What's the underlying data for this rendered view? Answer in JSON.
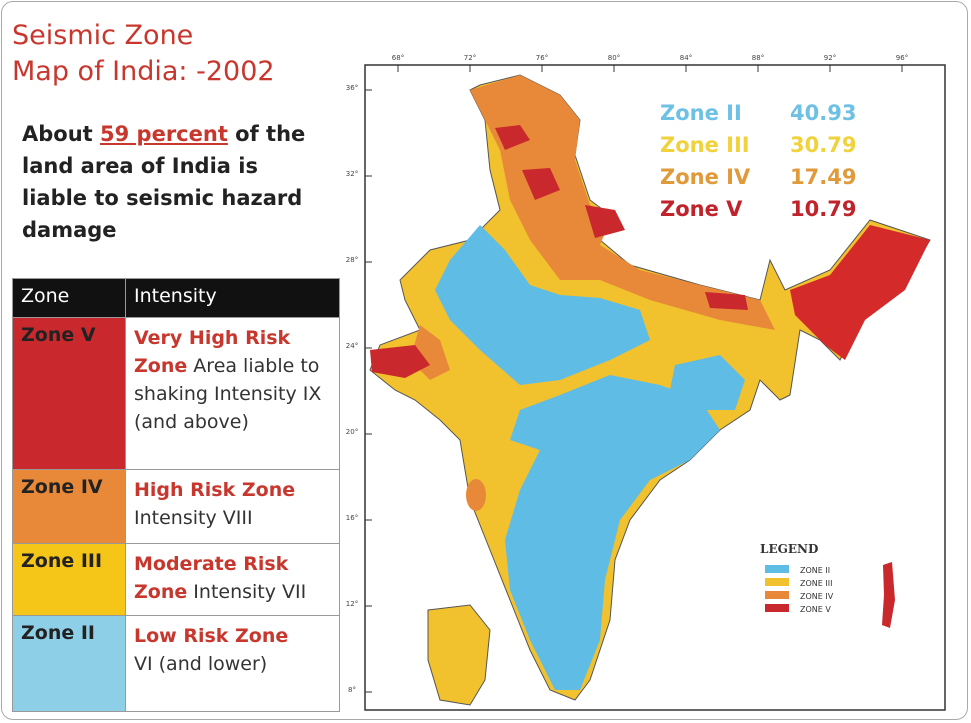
{
  "header": {
    "title_line1": "Seismic Zone",
    "title_line2": "Map of India: -2002"
  },
  "description": {
    "before": "About ",
    "highlight": "59 percent",
    "after": " of the land area of India is liable to seismic hazard damage"
  },
  "table": {
    "header": [
      "Zone",
      "Intensity"
    ],
    "rows": [
      {
        "zone": "Zone V",
        "risk": "Very High Risk Zone",
        "detail": "Area liable to shaking Intensity IX (and above)"
      },
      {
        "zone": "Zone IV",
        "risk": "High Risk  Zone",
        "detail": "Intensity VIII"
      },
      {
        "zone": "Zone III",
        "risk": "Moderate Risk Zone",
        "detail": "Intensity VII"
      },
      {
        "zone": "Zone II",
        "risk": "Low Risk Zone",
        "detail": "VI (and lower)"
      }
    ]
  },
  "zone_stats": [
    {
      "zone": "Zone II",
      "value": 40.93
    },
    {
      "zone": "Zone III",
      "value": 30.79
    },
    {
      "zone": "Zone IV",
      "value": 17.49
    },
    {
      "zone": "Zone V",
      "value": 10.79
    }
  ],
  "map": {
    "top_longitudes": [
      "68°",
      "72°",
      "76°",
      "80°",
      "84°",
      "88°",
      "92°",
      "96°"
    ],
    "left_latitudes": [
      "36°",
      "32°",
      "28°",
      "24°",
      "20°",
      "16°",
      "12°",
      "8°"
    ],
    "legend_title": "LEGEND",
    "legend_items": [
      "ZONE II",
      "ZONE III",
      "ZONE IV",
      "ZONE V"
    ]
  }
}
